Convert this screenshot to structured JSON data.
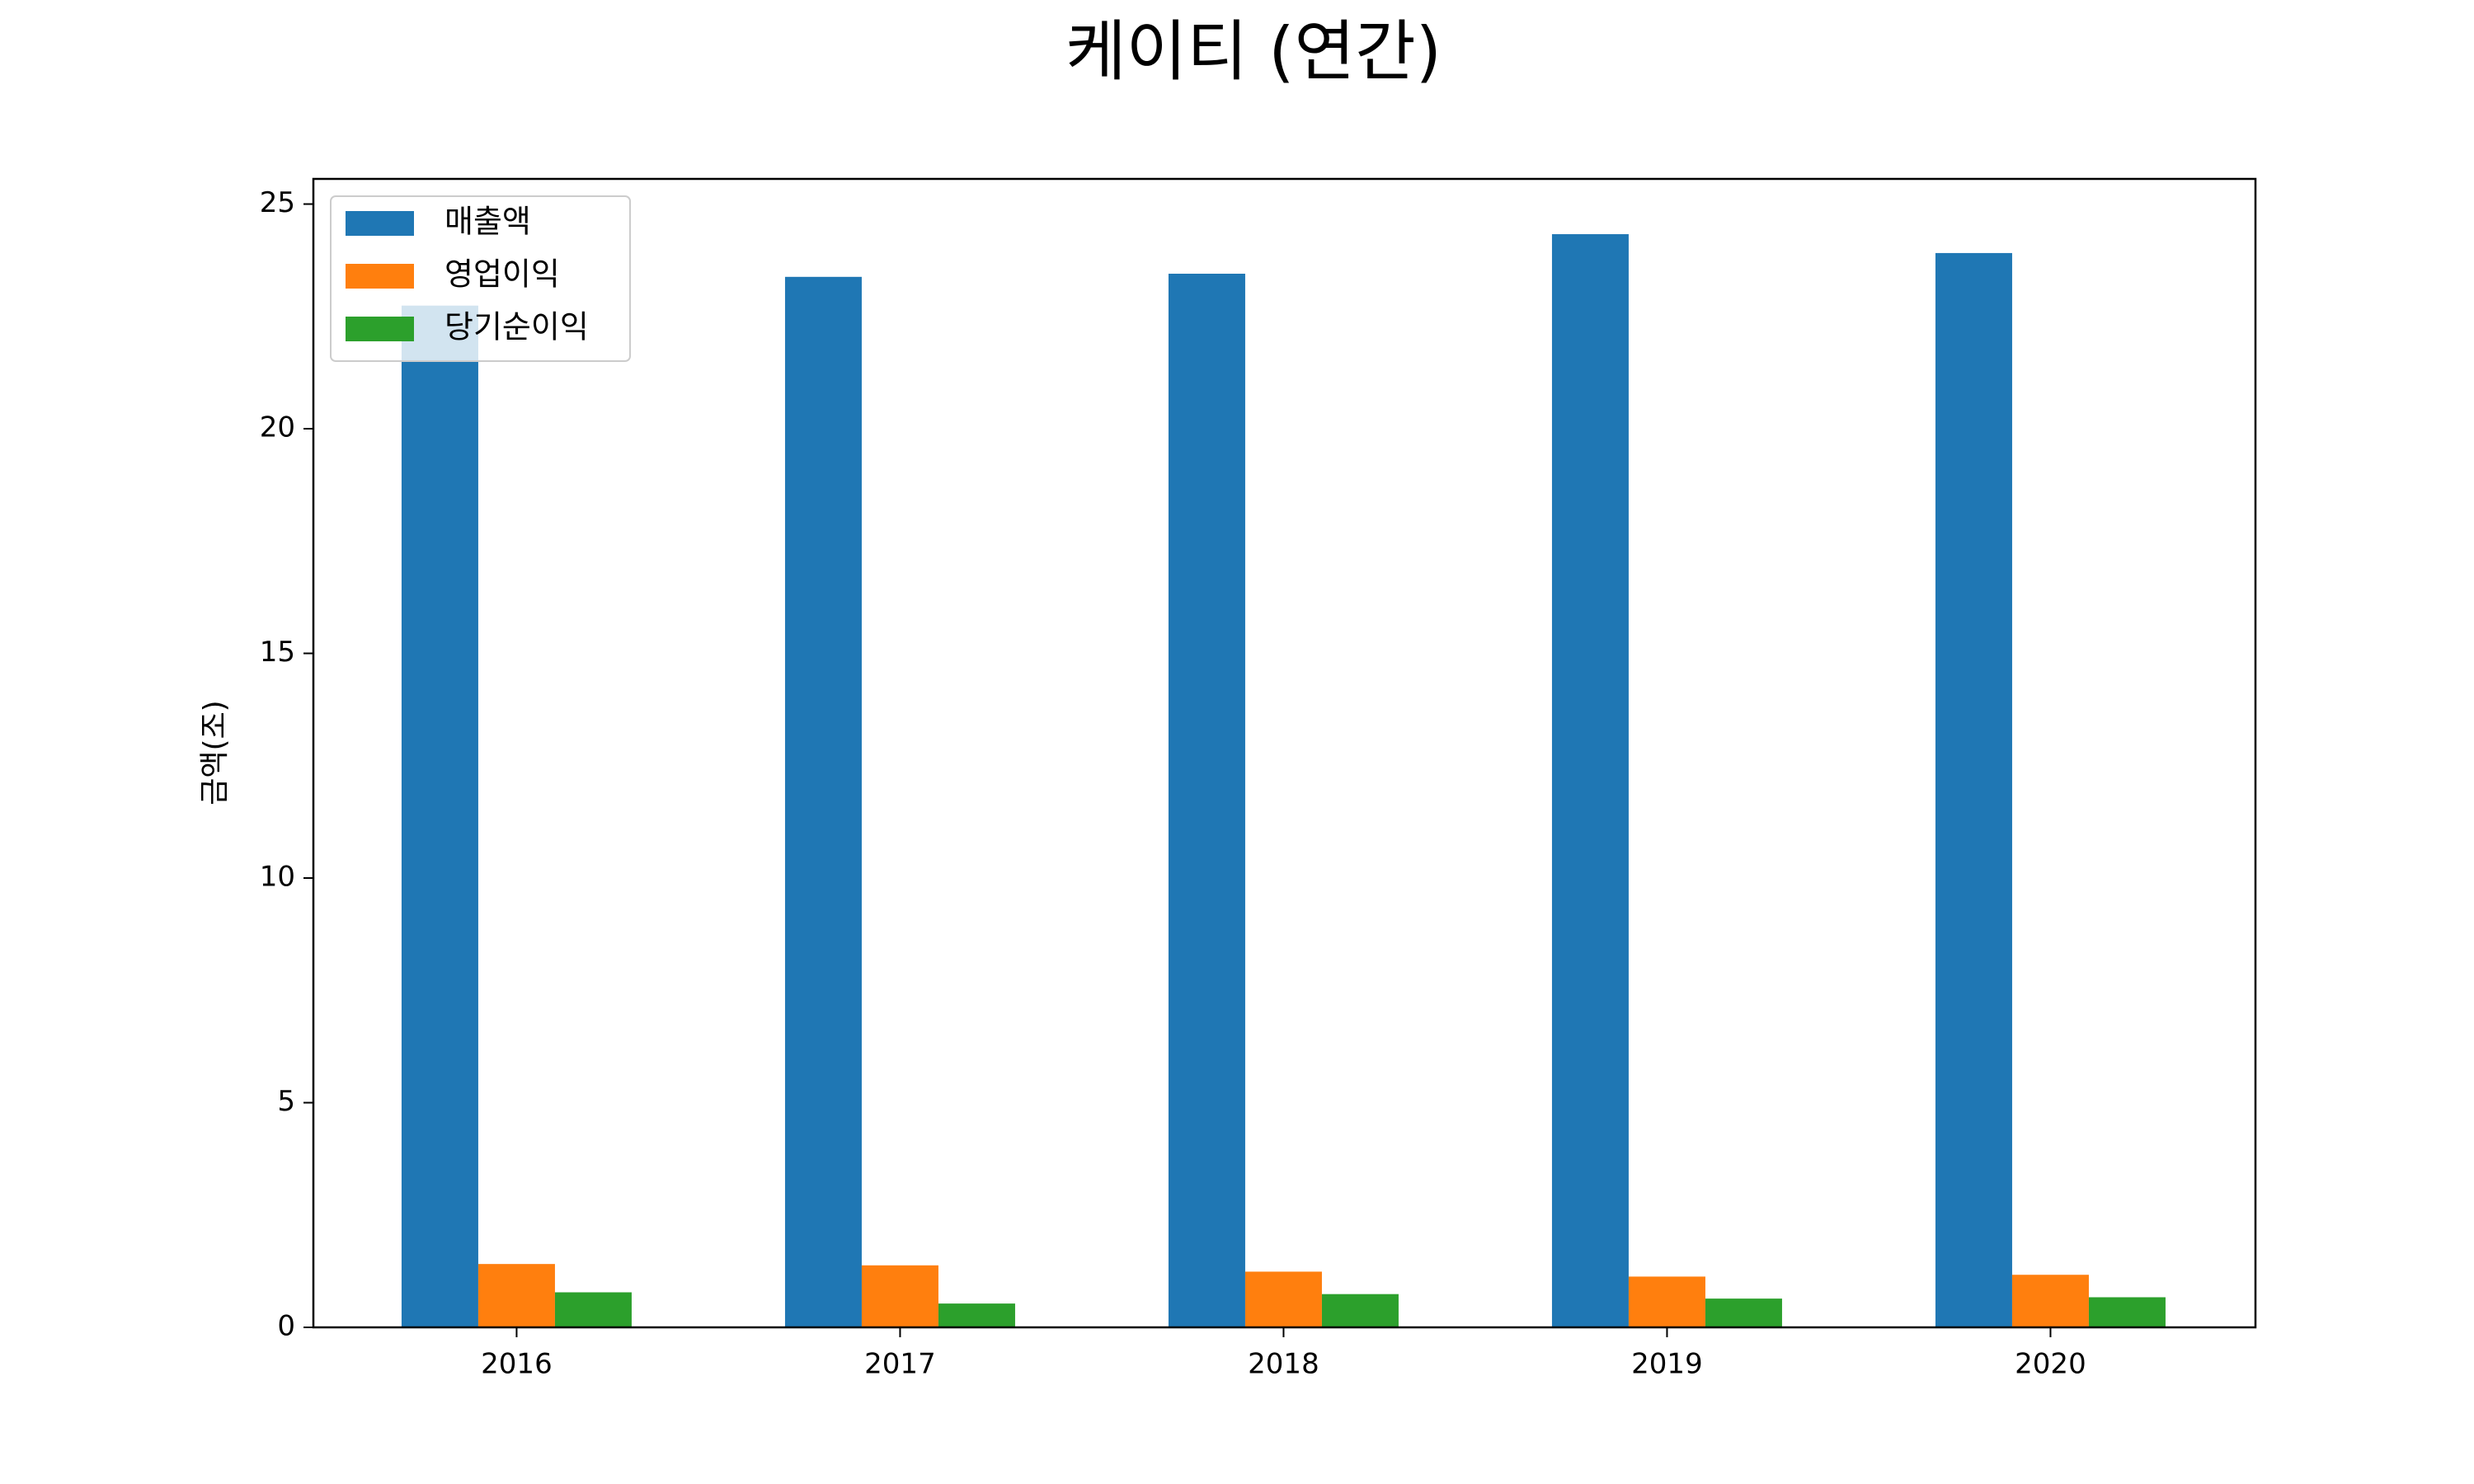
{
  "chart_data": {
    "type": "bar",
    "title": "케이티 (연간)",
    "y_label": "금액(조)",
    "categories": [
      "2016",
      "2017",
      "2018",
      "2019",
      "2020"
    ],
    "series": [
      {
        "name": "매출액",
        "color": "#1f77b4",
        "values": [
          22.74,
          23.38,
          23.45,
          24.33,
          23.91
        ]
      },
      {
        "name": "영업이익",
        "color": "#ff7f0e",
        "values": [
          1.41,
          1.38,
          1.24,
          1.13,
          1.17
        ]
      },
      {
        "name": "당기순이익",
        "color": "#2ca02c",
        "values": [
          0.78,
          0.53,
          0.74,
          0.64,
          0.67
        ]
      }
    ],
    "ylim": [
      0,
      25.56
    ],
    "yticks": [
      0,
      5,
      10,
      15,
      20,
      25
    ],
    "grid": false,
    "legend": "upper left"
  }
}
